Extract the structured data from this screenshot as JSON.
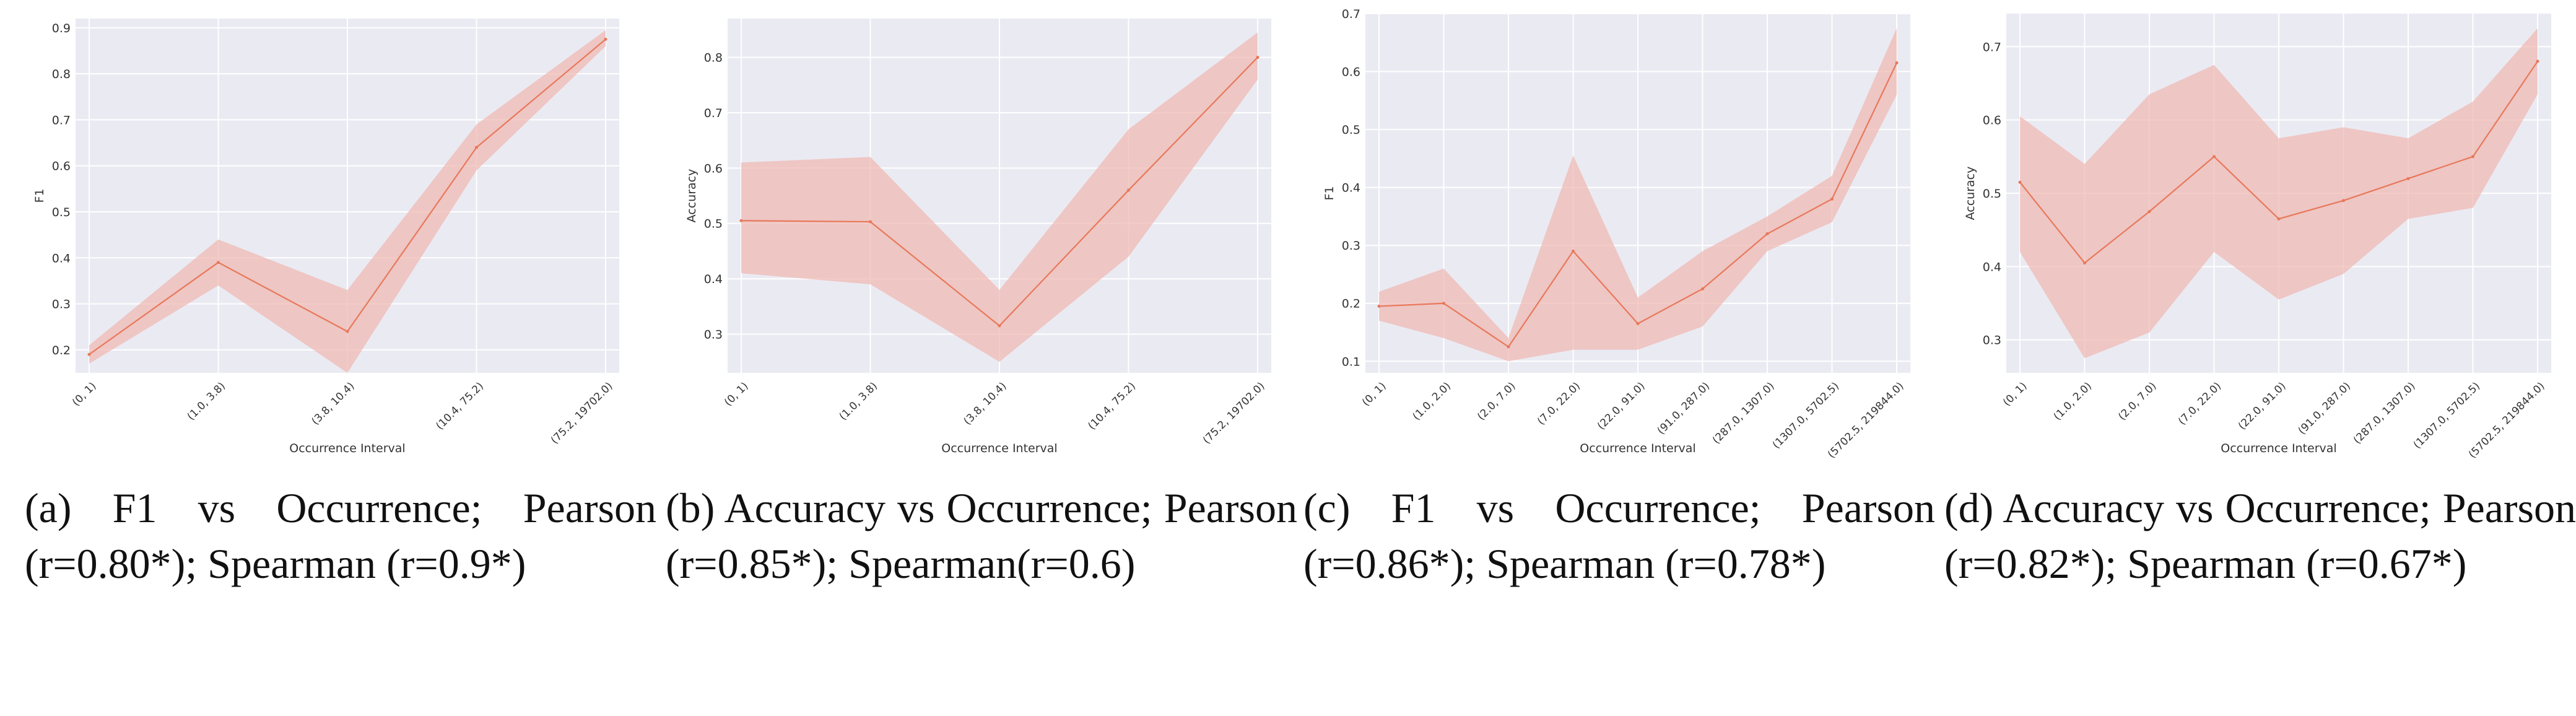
{
  "colors": {
    "line": "#e8785a",
    "band": "#f0b8b2",
    "plot_bg": "#eaeaf2",
    "grid": "#ffffff"
  },
  "panels": [
    {
      "caption": "(a) F1 vs Occurrence; Pearson (r=0.80*); Spearman (r=0.9*)"
    },
    {
      "caption": "(b) Accuracy vs Occurrence; Pearson (r=0.85*); Spearman(r=0.6)"
    },
    {
      "caption": "(c) F1 vs Occurrence; Pearson (r=0.86*); Spearman (r=0.78*)"
    },
    {
      "caption": "(d) Accuracy vs Occurrence; Pearson (r=0.82*); Spearman (r=0.67*)"
    }
  ],
  "chart_data": [
    {
      "type": "line",
      "xlabel": "Occurrence Interval",
      "ylabel": "F1",
      "categories": [
        "(0, 1)",
        "(1.0, 3.8)",
        "(3.8, 10.4)",
        "(10.4, 75.2)",
        "(75.2, 19702.0)"
      ],
      "ylim": [
        0.15,
        0.92
      ],
      "yticks": [
        0.2,
        0.3,
        0.4,
        0.5,
        0.6,
        0.7,
        0.8,
        0.9
      ],
      "series": [
        {
          "values": [
            0.19,
            0.39,
            0.24,
            0.64,
            0.875
          ],
          "lower": [
            0.17,
            0.34,
            0.15,
            0.59,
            0.86
          ],
          "upper": [
            0.21,
            0.44,
            0.33,
            0.69,
            0.895
          ]
        }
      ]
    },
    {
      "type": "line",
      "xlabel": "Occurrence Interval",
      "ylabel": "Accuracy",
      "categories": [
        "(0, 1)",
        "(1.0, 3.8)",
        "(3.8, 10.4)",
        "(10.4, 75.2)",
        "(75.2, 19702.0)"
      ],
      "ylim": [
        0.23,
        0.87
      ],
      "yticks": [
        0.3,
        0.4,
        0.5,
        0.6,
        0.7,
        0.8
      ],
      "series": [
        {
          "values": [
            0.505,
            0.503,
            0.315,
            0.56,
            0.8
          ],
          "lower": [
            0.41,
            0.39,
            0.25,
            0.44,
            0.76
          ],
          "upper": [
            0.61,
            0.62,
            0.38,
            0.67,
            0.845
          ]
        }
      ]
    },
    {
      "type": "line",
      "xlabel": "Occurrence Interval",
      "ylabel": "F1",
      "categories": [
        "(0, 1)",
        "(1.0, 2.0)",
        "(2.0, 7.0)",
        "(7.0, 22.0)",
        "(22.0, 91.0)",
        "(91.0, 287.0)",
        "(287.0, 1307.0)",
        "(1307.0, 5702.5)",
        "(5702.5, 219844.0)"
      ],
      "ylim": [
        0.08,
        0.7
      ],
      "yticks": [
        0.1,
        0.2,
        0.3,
        0.4,
        0.5,
        0.6,
        0.7
      ],
      "series": [
        {
          "values": [
            0.195,
            0.2,
            0.125,
            0.29,
            0.165,
            0.225,
            0.32,
            0.38,
            0.615
          ],
          "lower": [
            0.17,
            0.14,
            0.1,
            0.12,
            0.12,
            0.16,
            0.29,
            0.34,
            0.56
          ],
          "upper": [
            0.22,
            0.26,
            0.14,
            0.455,
            0.21,
            0.29,
            0.35,
            0.42,
            0.675
          ]
        }
      ]
    },
    {
      "type": "line",
      "xlabel": "Occurrence Interval",
      "ylabel": "Accuracy",
      "categories": [
        "(0, 1)",
        "(1.0, 2.0)",
        "(2.0, 7.0)",
        "(7.0, 22.0)",
        "(22.0, 91.0)",
        "(91.0, 287.0)",
        "(287.0, 1307.0)",
        "(1307.0, 5702.5)",
        "(5702.5, 219844.0)"
      ],
      "ylim": [
        0.255,
        0.745
      ],
      "yticks": [
        0.3,
        0.4,
        0.5,
        0.6,
        0.7
      ],
      "series": [
        {
          "values": [
            0.515,
            0.405,
            0.475,
            0.55,
            0.465,
            0.49,
            0.52,
            0.55,
            0.68
          ],
          "lower": [
            0.42,
            0.275,
            0.31,
            0.42,
            0.355,
            0.39,
            0.465,
            0.48,
            0.635
          ],
          "upper": [
            0.605,
            0.54,
            0.635,
            0.675,
            0.575,
            0.59,
            0.575,
            0.625,
            0.725
          ]
        }
      ]
    }
  ]
}
